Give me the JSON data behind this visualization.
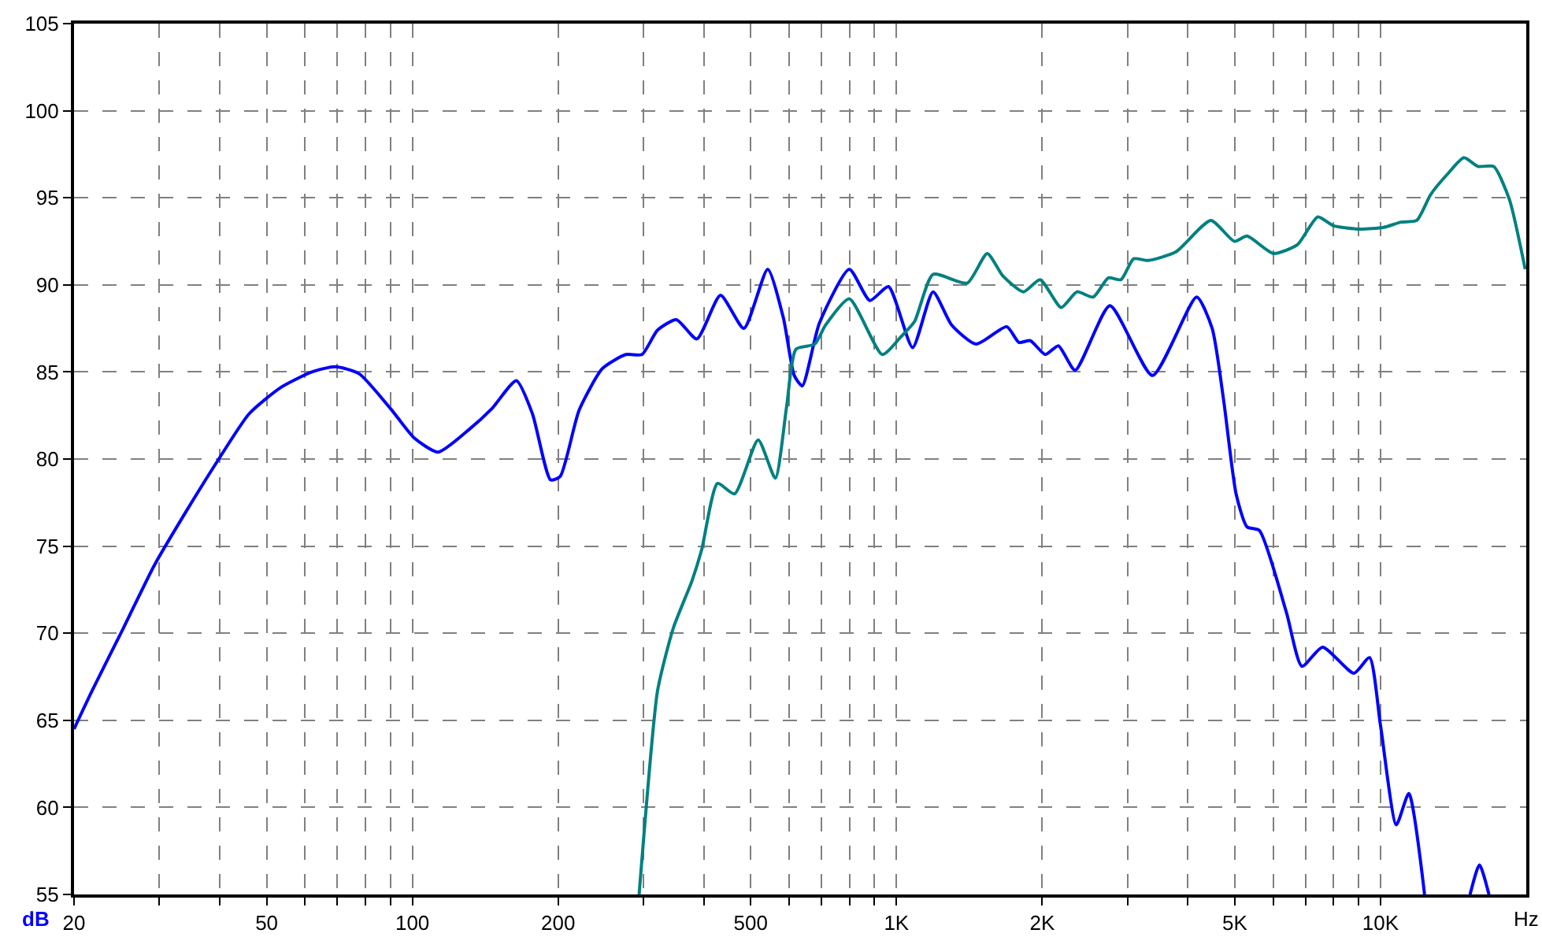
{
  "chart_data": {
    "type": "line",
    "xlabel": "Hz",
    "ylabel": "dB",
    "xlim": [
      20,
      20000
    ],
    "ylim": [
      55,
      105
    ],
    "log": "x",
    "grid": true,
    "line_style": "solid",
    "marker": "none",
    "xticks": [
      20,
      {
        "value": 30,
        "label": null
      },
      {
        "value": 40,
        "label": null
      },
      50,
      {
        "value": 60,
        "label": null
      },
      {
        "value": 70,
        "label": null
      },
      {
        "value": 80,
        "label": null
      },
      {
        "value": 90,
        "label": null
      },
      100,
      200,
      {
        "value": 300,
        "label": null
      },
      {
        "value": 400,
        "label": null
      },
      500,
      {
        "value": 600,
        "label": null
      },
      {
        "value": 700,
        "label": null
      },
      {
        "value": 800,
        "label": null
      },
      {
        "value": 900,
        "label": null
      },
      {
        "value": 1000,
        "label": "1K"
      },
      {
        "value": 2000,
        "label": "2K"
      },
      {
        "value": 3000,
        "label": null
      },
      {
        "value": 4000,
        "label": null
      },
      {
        "value": 5000,
        "label": "5K"
      },
      {
        "value": 6000,
        "label": null
      },
      {
        "value": 7000,
        "label": null
      },
      {
        "value": 8000,
        "label": null
      },
      {
        "value": 9000,
        "label": null
      },
      {
        "value": 10000,
        "label": "10K"
      }
    ],
    "yticks": [
      55,
      60,
      65,
      70,
      75,
      80,
      85,
      90,
      95,
      100,
      105
    ],
    "series": [
      {
        "color": "#0000ff",
        "x": [
          20,
          21.8,
          25.3,
          29.3,
          34.1,
          39.6,
          46.0,
          53.4,
          62.0,
          69.3,
          77.6,
          90.1,
          101,
          113,
          131,
          146,
          164,
          177,
          193,
          202,
          221,
          247,
          276,
          298,
          321,
          351,
          387,
          433,
          484,
          542,
          584,
          615,
          639,
          693,
          799,
          881,
          963,
          1080,
          1190,
          1300,
          1460,
          1690,
          1790,
          1890,
          2030,
          2160,
          2340,
          2760,
          3380,
          4170,
          4490,
          4740,
          5030,
          5300,
          5620,
          6390,
          6880,
          7590,
          8810,
          9490,
          10000,
          10780,
          11440,
          12330,
          13500,
          15310,
          16010,
          16750
        ],
        "values": [
          64.5,
          66.7,
          70.3,
          73.9,
          77.0,
          79.9,
          82.6,
          84.1,
          85.0,
          85.3,
          84.9,
          82.9,
          81.2,
          80.4,
          81.7,
          82.9,
          84.5,
          82.6,
          78.8,
          79.0,
          82.8,
          85.2,
          86.0,
          86.0,
          87.4,
          88.0,
          86.9,
          89.4,
          87.5,
          90.9,
          88.1,
          84.8,
          84.2,
          87.8,
          90.9,
          89.1,
          89.9,
          86.4,
          89.6,
          87.7,
          86.6,
          87.6,
          86.7,
          86.8,
          86.0,
          86.5,
          85.1,
          88.8,
          84.8,
          89.3,
          87.5,
          83.4,
          78.0,
          76.1,
          75.9,
          71.2,
          68.1,
          69.2,
          67.7,
          68.6,
          64.7,
          59.0,
          60.8,
          55,
          null,
          55,
          56.7,
          55
        ]
      },
      {
        "color": "#008080",
        "x": [
          294,
          302,
          321,
          346,
          378,
          396,
          427,
          463,
          518,
          562,
          593,
          620,
          678,
          714,
          799,
          935,
          1020,
          1090,
          1190,
          1400,
          1540,
          1660,
          1830,
          1980,
          2190,
          2360,
          2550,
          2740,
          2910,
          3090,
          3310,
          3780,
          4460,
          4990,
          5300,
          6010,
          6730,
          7420,
          7990,
          9070,
          10150,
          11020,
          11880,
          12700,
          13790,
          14870,
          15900,
          17130,
          18460,
          19900
        ],
        "values": [
          55,
          59.0,
          66.7,
          70.3,
          73.0,
          74.8,
          78.6,
          78.0,
          81.1,
          78.9,
          83.0,
          86.3,
          86.6,
          87.7,
          89.2,
          86.0,
          87.0,
          87.9,
          90.6,
          90.1,
          91.8,
          90.5,
          89.6,
          90.3,
          88.7,
          89.6,
          89.3,
          90.4,
          90.3,
          91.5,
          91.4,
          91.9,
          93.7,
          92.5,
          92.8,
          91.8,
          92.3,
          93.9,
          93.4,
          93.2,
          93.3,
          93.6,
          93.7,
          95.2,
          96.4,
          97.3,
          96.8,
          96.8,
          94.9,
          90.9
        ]
      }
    ]
  }
}
